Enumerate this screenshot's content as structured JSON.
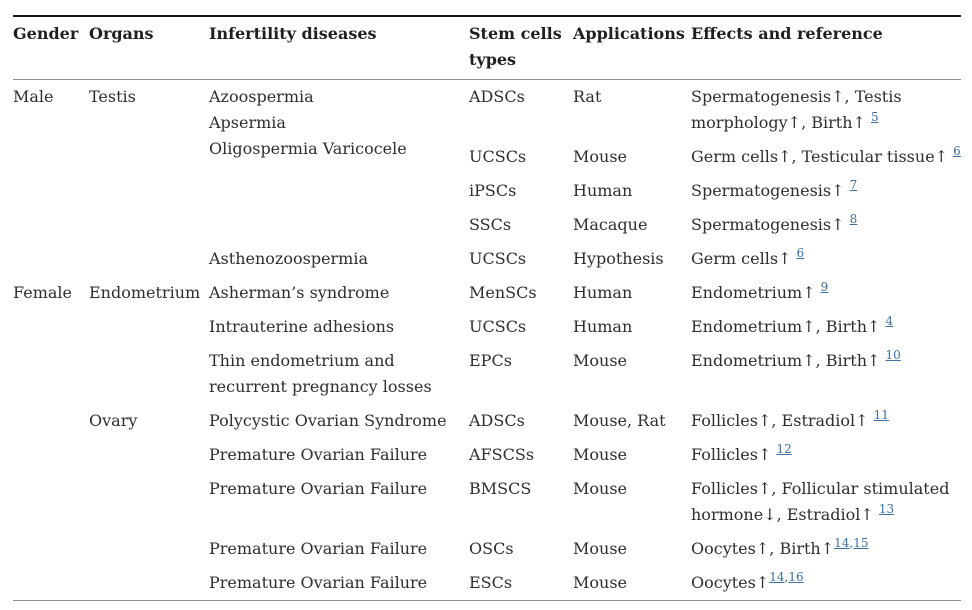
{
  "table": {
    "columns": [
      {
        "key": "gender",
        "label": "Gender"
      },
      {
        "key": "organs",
        "label": "Organs"
      },
      {
        "key": "disease",
        "label": "Infertility diseases"
      },
      {
        "key": "stem",
        "label": "Stem cells types"
      },
      {
        "key": "app",
        "label": "Applications"
      },
      {
        "key": "effect",
        "label": "Effects and reference"
      }
    ],
    "rows": [
      {
        "gender": {
          "text": "Male",
          "rowspan": 5
        },
        "organs": {
          "text": "Testis",
          "rowspan": 5
        },
        "disease": {
          "lines": [
            "Azoospermia",
            "Apsermia",
            "Oligospermia Varicocele"
          ],
          "rowspan": 4
        },
        "stem": "ADSCs",
        "app": "Rat",
        "effect": {
          "lines": [
            "Spermatogenesis↑, Testis",
            "morphology↑, Birth↑"
          ],
          "refs": [
            "5"
          ],
          "space": true
        }
      },
      {
        "stem": "UCSCs",
        "app": "Mouse",
        "effect": {
          "lines": [
            "Germ cells↑, Testicular tissue↑"
          ],
          "refs": [
            "6"
          ],
          "space": true
        }
      },
      {
        "stem": "iPSCs",
        "app": "Human",
        "effect": {
          "lines": [
            "Spermatogenesis↑"
          ],
          "refs": [
            "7"
          ],
          "space": true
        }
      },
      {
        "stem": "SSCs",
        "app": "Macaque",
        "effect": {
          "lines": [
            "Spermatogenesis↑"
          ],
          "refs": [
            "8"
          ],
          "space": true
        }
      },
      {
        "disease": "Asthenozoospermia",
        "stem": "UCSCs",
        "app": "Hypothesis",
        "effect": {
          "lines": [
            "Germ cells↑"
          ],
          "refs": [
            "6"
          ],
          "space": true
        }
      },
      {
        "gender": {
          "text": "Female",
          "rowspan": 8
        },
        "organs": {
          "text": "Endometrium",
          "rowspan": 3
        },
        "disease": "Asherman’s syndrome",
        "stem": "MenSCs",
        "app": "Human",
        "effect": {
          "lines": [
            "Endometrium↑"
          ],
          "refs": [
            "9"
          ],
          "space": true
        }
      },
      {
        "disease": "Intrauterine adhesions",
        "stem": "UCSCs",
        "app": "Human",
        "effect": {
          "lines": [
            "Endometrium↑, Birth↑"
          ],
          "refs": [
            "4"
          ],
          "space": true
        }
      },
      {
        "disease": {
          "lines": [
            "Thin endometrium and",
            "recurrent pregnancy losses"
          ]
        },
        "stem": "EPCs",
        "app": "Mouse",
        "effect": {
          "lines": [
            "Endometrium↑, Birth↑"
          ],
          "refs": [
            "10"
          ],
          "space": true
        }
      },
      {
        "organs": {
          "text": "Ovary",
          "rowspan": 5
        },
        "disease": "Polycystic Ovarian Syndrome",
        "stem": "ADSCs",
        "app": "Mouse, Rat",
        "effect": {
          "lines": [
            "Follicles↑, Estradiol↑"
          ],
          "refs": [
            "11"
          ],
          "space": true
        }
      },
      {
        "disease": "Premature Ovarian Failure",
        "stem": "AFSCSs",
        "app": "Mouse",
        "effect": {
          "lines": [
            "Follicles↑"
          ],
          "refs": [
            "12"
          ],
          "space": true
        }
      },
      {
        "disease": "Premature Ovarian Failure",
        "stem": "BMSCS",
        "app": "Mouse",
        "effect": {
          "lines": [
            "Follicles↑, Follicular stimulated",
            "hormone↓, Estradiol↑"
          ],
          "refs": [
            "13"
          ],
          "space": true
        }
      },
      {
        "disease": "Premature Ovarian Failure",
        "stem": "OSCs",
        "app": "Mouse",
        "effect": {
          "lines": [
            "Oocytes↑, Birth↑"
          ],
          "refs": [
            "14",
            "15"
          ],
          "space": false
        }
      },
      {
        "disease": "Premature Ovarian Failure",
        "stem": "ESCs",
        "app": "Mouse",
        "effect": {
          "lines": [
            "Oocytes↑"
          ],
          "refs": [
            "14",
            "16"
          ],
          "space": false
        }
      }
    ]
  },
  "colors": {
    "text": "#2e2e2e",
    "header_text": "#1f1f1f",
    "link": "#3d6f9e",
    "rule_dark": "#1b1b1b",
    "rule_light": "#8d8d8d",
    "background": "#ffffff"
  }
}
